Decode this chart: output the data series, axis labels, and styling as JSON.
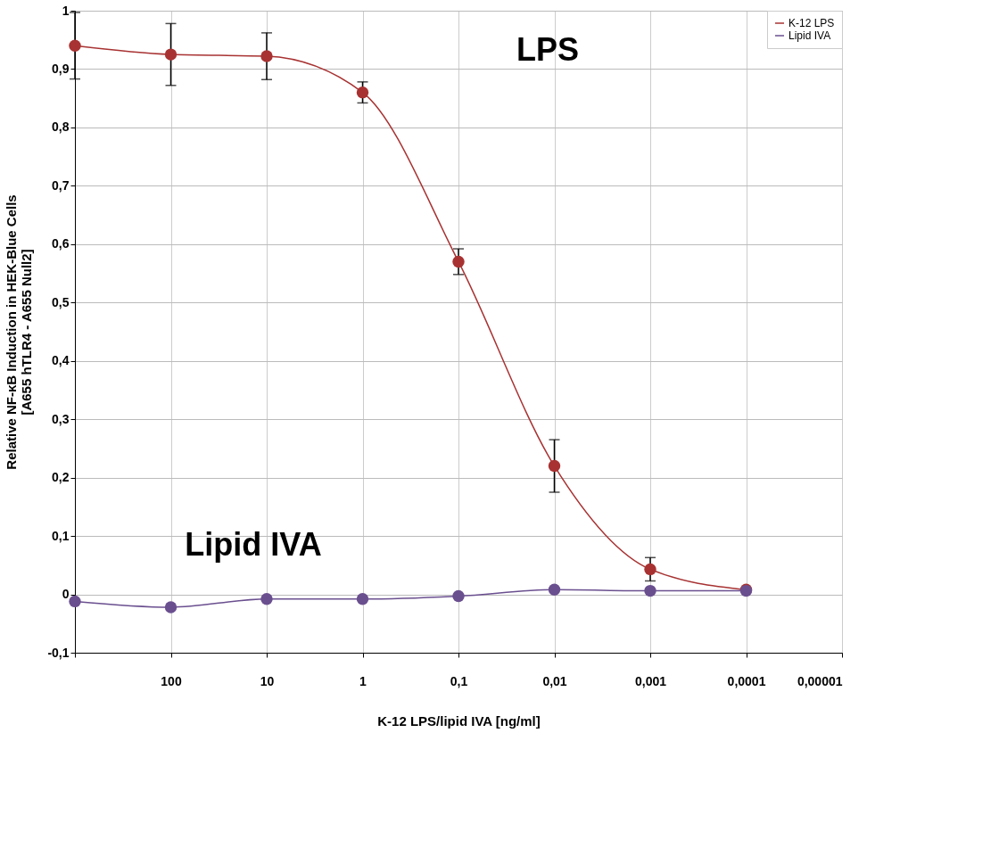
{
  "chart_data": {
    "type": "line",
    "xlabel": "K-12 LPS/lipid IVA [ng/ml]",
    "ylabel": "Relative NF-κB Induction in HEK-Blue Cells\n[A655 hTLR4 - A655 Null2]",
    "x": [
      1000,
      100,
      10,
      1,
      0.1,
      0.01,
      0.001,
      0.0001
    ],
    "series": [
      {
        "name": "K-12 LPS",
        "color": "#a83232",
        "values": [
          0.94,
          0.925,
          0.922,
          0.86,
          0.57,
          0.22,
          0.043,
          0.008
        ],
        "errors": [
          0.057,
          0.053,
          0.04,
          0.018,
          0.022,
          0.045,
          0.02,
          null
        ]
      },
      {
        "name": "Lipid IVA",
        "color": "#6a4f8f",
        "values": [
          -0.012,
          -0.022,
          -0.008,
          -0.008,
          -0.003,
          0.008,
          0.006,
          0.006
        ]
      }
    ],
    "log": "x",
    "xlim": [
      1000,
      1e-05
    ],
    "xticks": [
      {
        "value": 1000,
        "label": null
      },
      100,
      10,
      1,
      {
        "value": 0.1,
        "label": "0,1"
      },
      {
        "value": 0.01,
        "label": "0,01"
      },
      {
        "value": 0.001,
        "label": "0,001"
      },
      {
        "value": 0.0001,
        "label": "0,0001"
      },
      {
        "value": 1e-05,
        "label": "0,00001"
      }
    ],
    "ylim": [
      -0.1,
      1
    ],
    "yticks": [
      {
        "value": -0.1,
        "label": "-0,1"
      },
      0,
      {
        "value": 0.1,
        "label": "0,1"
      },
      {
        "value": 0.2,
        "label": "0,2"
      },
      {
        "value": 0.3,
        "label": "0,3"
      },
      {
        "value": 0.4,
        "label": "0,4"
      },
      {
        "value": 0.5,
        "label": "0,5"
      },
      {
        "value": 0.6,
        "label": "0,6"
      },
      {
        "value": 0.7,
        "label": "0,7"
      },
      {
        "value": 0.8,
        "label": "0,8"
      },
      {
        "value": 0.9,
        "label": "0,9"
      },
      1
    ],
    "annotations": [
      "LPS",
      "Lipid IVA"
    ],
    "grid": true,
    "legend": "top right",
    "marker": "circle",
    "line_style": "solid"
  }
}
